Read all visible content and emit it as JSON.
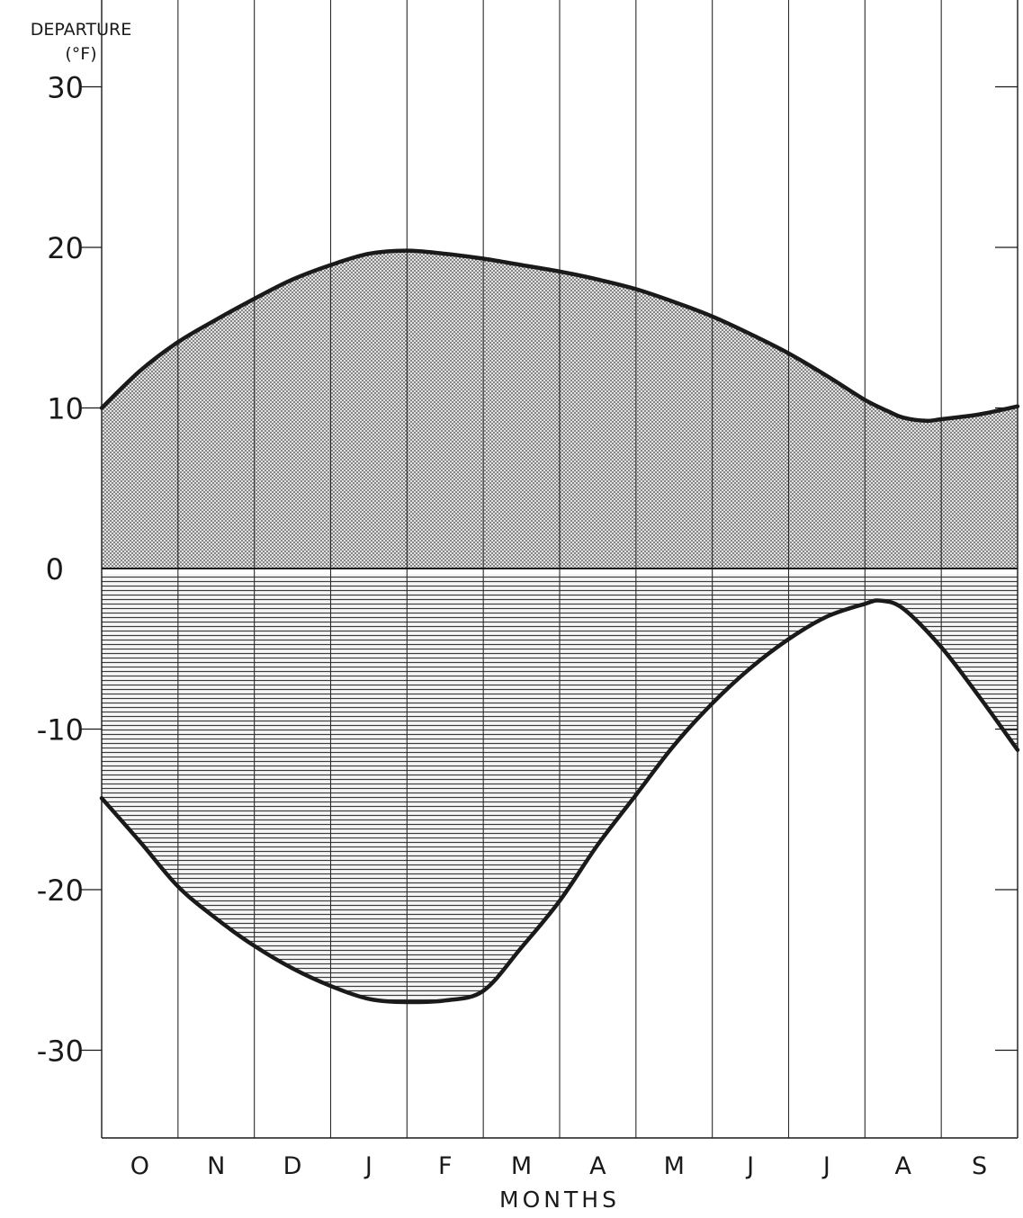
{
  "chart_data": {
    "type": "area",
    "ylabel_line1": "DEPARTURE",
    "ylabel_line2": "(°F)",
    "xlabel": "MONTHS",
    "categories": [
      "O",
      "N",
      "D",
      "J",
      "F",
      "M",
      "A",
      "M",
      "J",
      "J",
      "A",
      "S"
    ],
    "ylim": [
      -35,
      30
    ],
    "yticks": [
      30,
      20,
      10,
      0,
      -10,
      -20,
      -30
    ],
    "ytick_labels": [
      "30",
      "20",
      "10",
      "0",
      "-10",
      "-20",
      "-30"
    ],
    "x_unit": "months from start of October",
    "xlim": [
      0,
      12
    ],
    "grid": "vertical month lines",
    "series": [
      {
        "fill": "stippled",
        "x": [
          0,
          0.5,
          1,
          1.5,
          2,
          2.5,
          3,
          3.5,
          4,
          4.5,
          5,
          5.5,
          6,
          6.5,
          7,
          7.5,
          8,
          8.5,
          9,
          9.5,
          10,
          10.3,
          10.5,
          10.8,
          11,
          11.5,
          12
        ],
        "y": [
          10.0,
          12.3,
          14.1,
          15.5,
          16.8,
          18.0,
          18.9,
          19.6,
          19.8,
          19.6,
          19.3,
          18.9,
          18.5,
          18.0,
          17.4,
          16.6,
          15.7,
          14.6,
          13.4,
          12.0,
          10.5,
          9.8,
          9.4,
          9.2,
          9.3,
          9.6,
          10.1
        ]
      },
      {
        "fill": "hatched",
        "x": [
          0,
          0.5,
          1,
          1.5,
          2,
          2.5,
          3,
          3.5,
          4,
          4.5,
          5,
          5.5,
          6,
          6.5,
          7,
          7.5,
          8,
          8.5,
          9,
          9.5,
          10,
          10.2,
          10.5,
          11,
          11.5,
          12
        ],
        "y": [
          -14.3,
          -17.0,
          -19.8,
          -21.8,
          -23.5,
          -24.9,
          -26.0,
          -26.8,
          -27.0,
          -26.9,
          -26.3,
          -23.6,
          -20.7,
          -17.2,
          -14.1,
          -11.0,
          -8.4,
          -6.2,
          -4.4,
          -3.0,
          -2.2,
          -2.0,
          -2.5,
          -4.9,
          -8.0,
          -11.3
        ]
      }
    ]
  },
  "colors": {
    "ink": "#1a1a1a",
    "stipple_bg": "#e2e2e2",
    "stipple_dot": "#3a3a3a",
    "hatch_line": "#3c3c3c",
    "grid": "#2a2a2a"
  }
}
